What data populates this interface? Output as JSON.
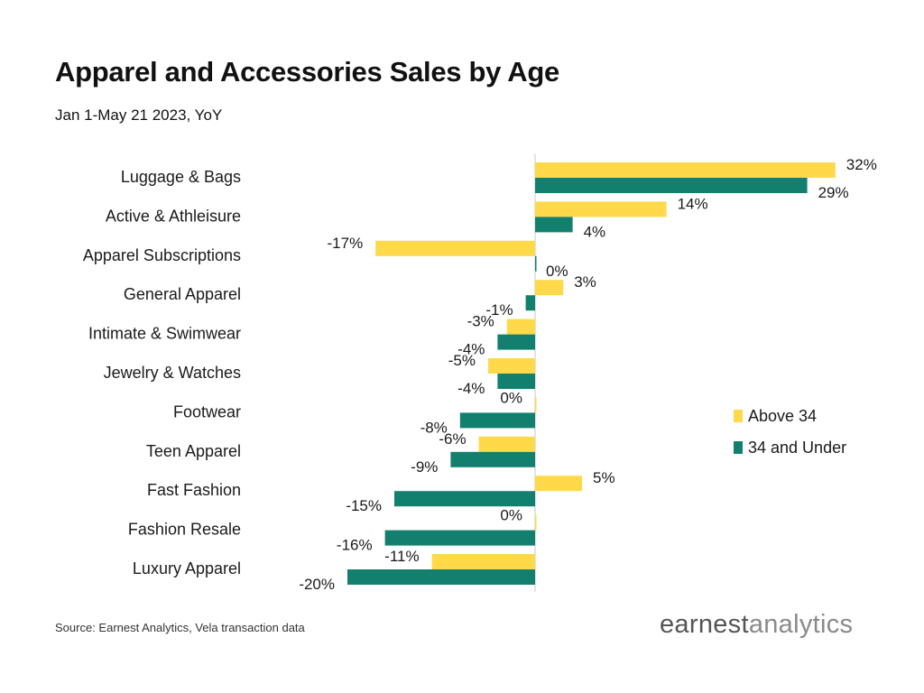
{
  "header": {
    "title": "Apparel and Accessories Sales by Age",
    "subtitle": "Jan 1-May 21 2023, YoY"
  },
  "footer": {
    "source": "Source: Earnest Analytics, Vela transaction data",
    "logo_part1": "earnest",
    "logo_part2": "analytics"
  },
  "colors": {
    "above34": "#FFD94A",
    "under34": "#13806F",
    "axis": "#c8c8c8"
  },
  "chart_data": {
    "type": "bar",
    "orientation": "horizontal",
    "title": "Apparel and Accessories Sales by Age",
    "subtitle": "Jan 1-May 21 2023, YoY",
    "categories": [
      "Luggage & Bags",
      "Active & Athleisure",
      "Apparel Subscriptions",
      "General Apparel",
      "Intimate & Swimwear",
      "Jewelry & Watches",
      "Footwear",
      "Teen Apparel",
      "Fast Fashion",
      "Fashion Resale",
      "Luxury Apparel"
    ],
    "series": [
      {
        "name": "Above 34",
        "color": "#FFD94A",
        "values": [
          32,
          14,
          -17,
          3,
          -3,
          -5,
          0,
          -6,
          5,
          0,
          -11
        ],
        "labels": [
          "32%",
          "14%",
          "-17%",
          "3%",
          "-3%",
          "-5%",
          "0%",
          "-6%",
          "5%",
          "0%",
          "-11%"
        ]
      },
      {
        "name": "34 and Under",
        "color": "#13806F",
        "values": [
          29,
          4,
          0,
          -1,
          -4,
          -4,
          -8,
          -9,
          -15,
          -16,
          -20
        ],
        "labels": [
          "29%",
          "4%",
          "0%",
          "-1%",
          "-4%",
          "-4%",
          "-8%",
          "-9%",
          "-15%",
          "-16%",
          "-20%"
        ]
      }
    ],
    "unit": "%",
    "grid": false,
    "legend": "right"
  }
}
